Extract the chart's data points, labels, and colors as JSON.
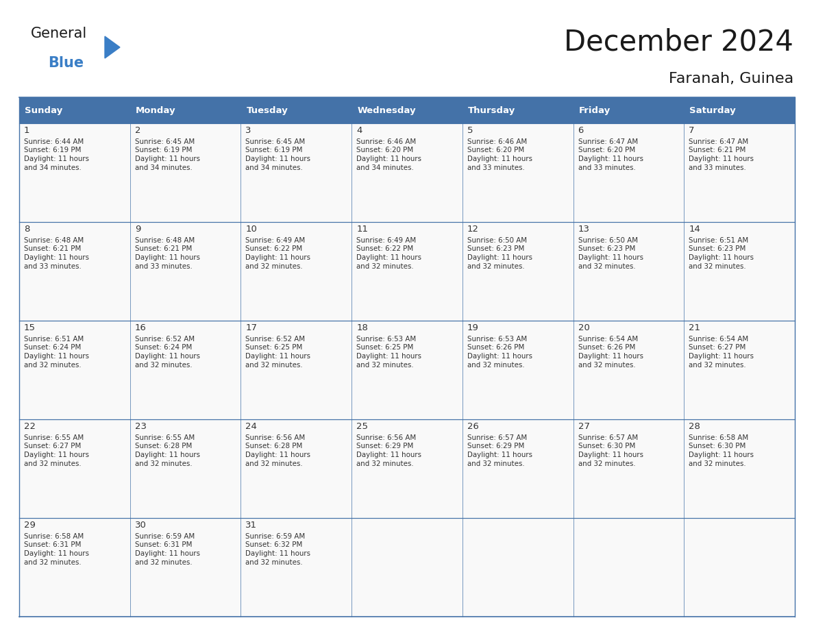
{
  "title": "December 2024",
  "subtitle": "Faranah, Guinea",
  "days_of_week": [
    "Sunday",
    "Monday",
    "Tuesday",
    "Wednesday",
    "Thursday",
    "Friday",
    "Saturday"
  ],
  "header_bg": "#4472A8",
  "header_text": "#FFFFFF",
  "cell_bg": "#F9F9F9",
  "border_color": "#4472A8",
  "text_color": "#333333",
  "title_color": "#1a1a1a",
  "logo_general_color": "#1a1a1a",
  "logo_blue_color": "#3A7EC6",
  "logo_triangle_color": "#3A7EC6",
  "calendar_data": [
    [
      {
        "day": 1,
        "sunrise": "6:44 AM",
        "sunset": "6:19 PM",
        "daylight_hours": 11,
        "daylight_minutes": 34
      },
      {
        "day": 2,
        "sunrise": "6:45 AM",
        "sunset": "6:19 PM",
        "daylight_hours": 11,
        "daylight_minutes": 34
      },
      {
        "day": 3,
        "sunrise": "6:45 AM",
        "sunset": "6:19 PM",
        "daylight_hours": 11,
        "daylight_minutes": 34
      },
      {
        "day": 4,
        "sunrise": "6:46 AM",
        "sunset": "6:20 PM",
        "daylight_hours": 11,
        "daylight_minutes": 34
      },
      {
        "day": 5,
        "sunrise": "6:46 AM",
        "sunset": "6:20 PM",
        "daylight_hours": 11,
        "daylight_minutes": 33
      },
      {
        "day": 6,
        "sunrise": "6:47 AM",
        "sunset": "6:20 PM",
        "daylight_hours": 11,
        "daylight_minutes": 33
      },
      {
        "day": 7,
        "sunrise": "6:47 AM",
        "sunset": "6:21 PM",
        "daylight_hours": 11,
        "daylight_minutes": 33
      }
    ],
    [
      {
        "day": 8,
        "sunrise": "6:48 AM",
        "sunset": "6:21 PM",
        "daylight_hours": 11,
        "daylight_minutes": 33
      },
      {
        "day": 9,
        "sunrise": "6:48 AM",
        "sunset": "6:21 PM",
        "daylight_hours": 11,
        "daylight_minutes": 33
      },
      {
        "day": 10,
        "sunrise": "6:49 AM",
        "sunset": "6:22 PM",
        "daylight_hours": 11,
        "daylight_minutes": 32
      },
      {
        "day": 11,
        "sunrise": "6:49 AM",
        "sunset": "6:22 PM",
        "daylight_hours": 11,
        "daylight_minutes": 32
      },
      {
        "day": 12,
        "sunrise": "6:50 AM",
        "sunset": "6:23 PM",
        "daylight_hours": 11,
        "daylight_minutes": 32
      },
      {
        "day": 13,
        "sunrise": "6:50 AM",
        "sunset": "6:23 PM",
        "daylight_hours": 11,
        "daylight_minutes": 32
      },
      {
        "day": 14,
        "sunrise": "6:51 AM",
        "sunset": "6:23 PM",
        "daylight_hours": 11,
        "daylight_minutes": 32
      }
    ],
    [
      {
        "day": 15,
        "sunrise": "6:51 AM",
        "sunset": "6:24 PM",
        "daylight_hours": 11,
        "daylight_minutes": 32
      },
      {
        "day": 16,
        "sunrise": "6:52 AM",
        "sunset": "6:24 PM",
        "daylight_hours": 11,
        "daylight_minutes": 32
      },
      {
        "day": 17,
        "sunrise": "6:52 AM",
        "sunset": "6:25 PM",
        "daylight_hours": 11,
        "daylight_minutes": 32
      },
      {
        "day": 18,
        "sunrise": "6:53 AM",
        "sunset": "6:25 PM",
        "daylight_hours": 11,
        "daylight_minutes": 32
      },
      {
        "day": 19,
        "sunrise": "6:53 AM",
        "sunset": "6:26 PM",
        "daylight_hours": 11,
        "daylight_minutes": 32
      },
      {
        "day": 20,
        "sunrise": "6:54 AM",
        "sunset": "6:26 PM",
        "daylight_hours": 11,
        "daylight_minutes": 32
      },
      {
        "day": 21,
        "sunrise": "6:54 AM",
        "sunset": "6:27 PM",
        "daylight_hours": 11,
        "daylight_minutes": 32
      }
    ],
    [
      {
        "day": 22,
        "sunrise": "6:55 AM",
        "sunset": "6:27 PM",
        "daylight_hours": 11,
        "daylight_minutes": 32
      },
      {
        "day": 23,
        "sunrise": "6:55 AM",
        "sunset": "6:28 PM",
        "daylight_hours": 11,
        "daylight_minutes": 32
      },
      {
        "day": 24,
        "sunrise": "6:56 AM",
        "sunset": "6:28 PM",
        "daylight_hours": 11,
        "daylight_minutes": 32
      },
      {
        "day": 25,
        "sunrise": "6:56 AM",
        "sunset": "6:29 PM",
        "daylight_hours": 11,
        "daylight_minutes": 32
      },
      {
        "day": 26,
        "sunrise": "6:57 AM",
        "sunset": "6:29 PM",
        "daylight_hours": 11,
        "daylight_minutes": 32
      },
      {
        "day": 27,
        "sunrise": "6:57 AM",
        "sunset": "6:30 PM",
        "daylight_hours": 11,
        "daylight_minutes": 32
      },
      {
        "day": 28,
        "sunrise": "6:58 AM",
        "sunset": "6:30 PM",
        "daylight_hours": 11,
        "daylight_minutes": 32
      }
    ],
    [
      {
        "day": 29,
        "sunrise": "6:58 AM",
        "sunset": "6:31 PM",
        "daylight_hours": 11,
        "daylight_minutes": 32
      },
      {
        "day": 30,
        "sunrise": "6:59 AM",
        "sunset": "6:31 PM",
        "daylight_hours": 11,
        "daylight_minutes": 32
      },
      {
        "day": 31,
        "sunrise": "6:59 AM",
        "sunset": "6:32 PM",
        "daylight_hours": 11,
        "daylight_minutes": 32
      },
      null,
      null,
      null,
      null
    ]
  ]
}
